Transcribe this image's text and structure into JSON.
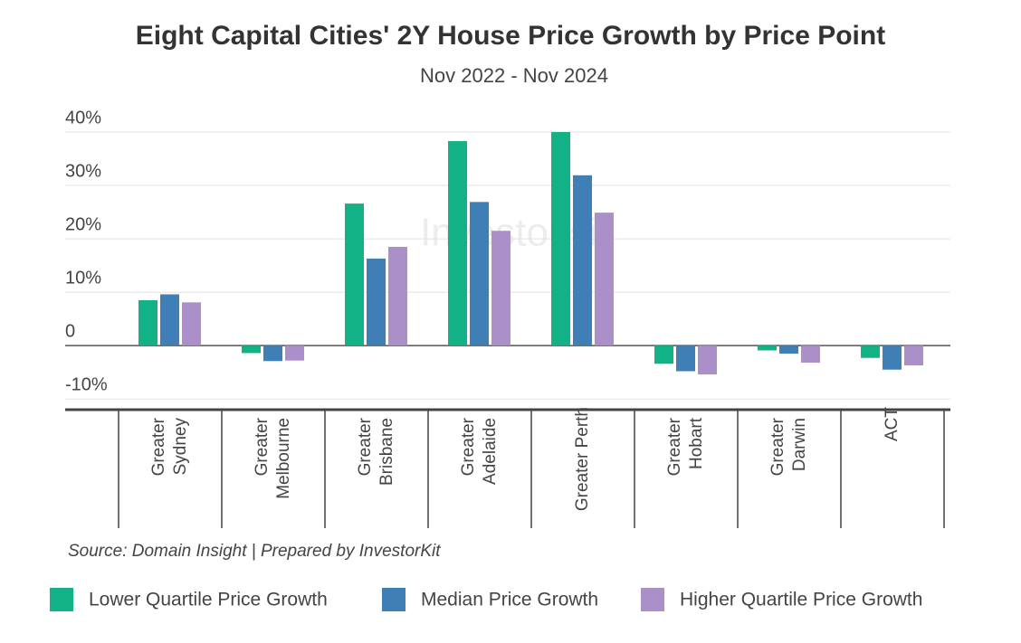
{
  "chart_data": {
    "type": "bar",
    "title": "Eight Capital Cities' 2Y House Price Growth by Price Point",
    "subtitle": "Nov 2022 - Nov 2024",
    "source": "Source: Domain Insight | Prepared by InvestorKit",
    "watermark": "InvestorKit",
    "categories": [
      "Greater Sydney",
      "Greater Melbourne",
      "Greater Brisbane",
      "Greater Adelaide",
      "Greater Perth",
      "Greater Hobart",
      "Greater Darwin",
      "ACT"
    ],
    "series": [
      {
        "name": "Lower Quartile Price Growth",
        "color": "#12b286",
        "values": [
          8.5,
          -1.4,
          26.6,
          38.3,
          40.0,
          -3.4,
          -0.9,
          -2.3
        ]
      },
      {
        "name": "Median Price Growth",
        "color": "#3f7fb6",
        "values": [
          9.6,
          -2.9,
          16.3,
          26.9,
          31.9,
          -4.8,
          -1.5,
          -4.5
        ]
      },
      {
        "name": "Higher Quartile Price Growth",
        "color": "#aa8fc8",
        "values": [
          8.1,
          -2.8,
          18.5,
          21.5,
          24.9,
          -5.4,
          -3.2,
          -3.7
        ]
      }
    ],
    "ylim": [
      -12,
      40
    ],
    "yticks": [
      {
        "value": -10,
        "label": "-10%"
      },
      0,
      {
        "value": 10,
        "label": "10%"
      },
      {
        "value": 20,
        "label": "20%"
      },
      {
        "value": 30,
        "label": "30%"
      },
      {
        "value": 40,
        "label": "40%"
      }
    ],
    "grid": true,
    "legend": "bottom"
  }
}
